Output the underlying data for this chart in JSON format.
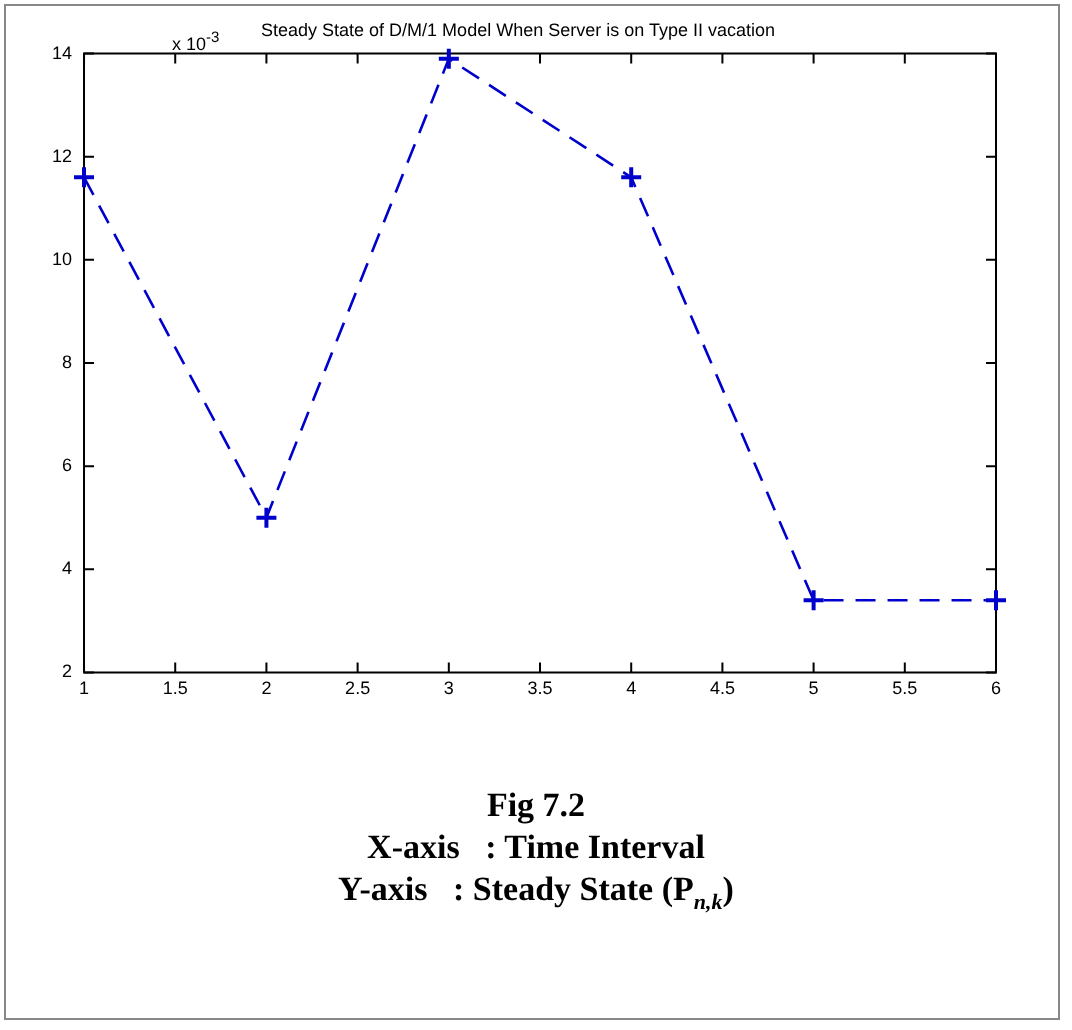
{
  "chart_data": {
    "type": "line",
    "title": "Steady State of D/M/1 Model When Server is on Type II vacation",
    "x": [
      1,
      2,
      3,
      4,
      5,
      6
    ],
    "series": [
      {
        "color": "#0000cc",
        "values": [
          11.6,
          5.0,
          13.9,
          11.6,
          3.4,
          3.4
        ]
      }
    ],
    "xlim": [
      1,
      6
    ],
    "xticks": [
      1,
      1.5,
      2,
      2.5,
      3,
      3.5,
      4,
      4.5,
      5,
      5.5,
      6
    ],
    "ylim": [
      2,
      14
    ],
    "yticks": [
      2,
      4,
      6,
      8,
      10,
      12,
      14
    ],
    "grid": false,
    "legend": false,
    "marker": "cross",
    "line_style": "dashed",
    "annotations": [
      "x 10$^{-3}$",
      "Fig 7.2",
      "X-axis   : Time Interval",
      "Y-axis   : Steady State (P$_{n,k}$)"
    ]
  }
}
